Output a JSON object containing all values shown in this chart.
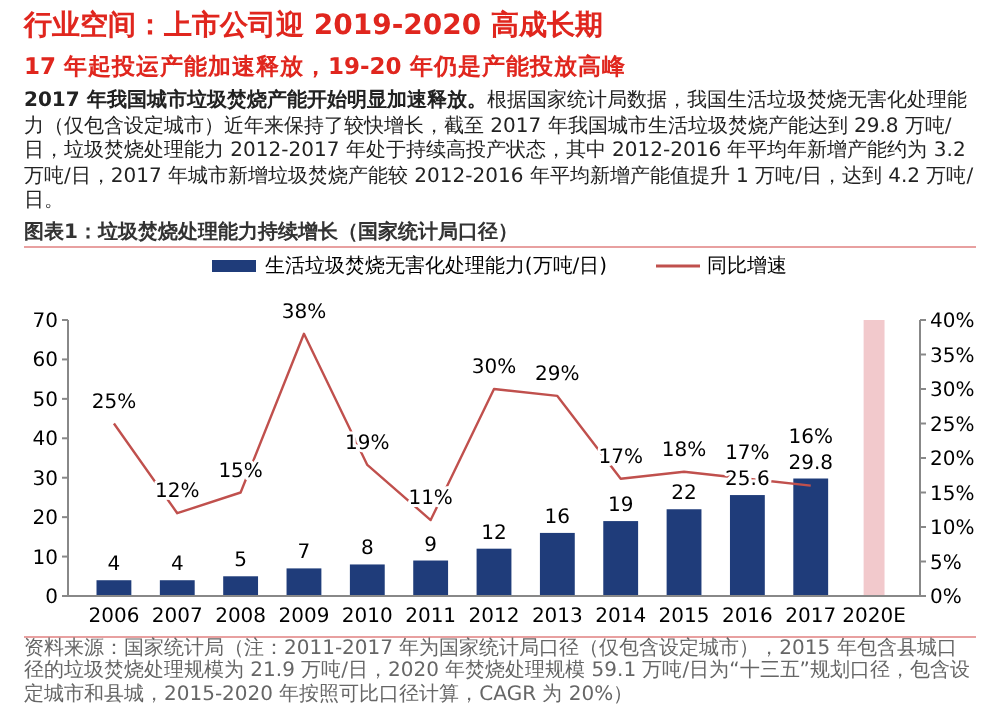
{
  "chart_data": {
    "type": "bar",
    "title": "行业空间：上市公司迎 2019-2020 高成长期",
    "subtitle": "17 年起投运产能加速释放，19-20 年仍是产能投放高峰",
    "annotations": [
      "2017 年我国城市垃圾焚烧产能开始明显加速释放。",
      "根据国家统计局数据，我国生活垃圾焚烧无害化处理能力（仅包含设定城市）近年来保持了较快增长，截至 2017 年我国城市生活垃圾焚烧产能达到 29.8 万吨/日，垃圾焚烧处理能力 2012-2017 年处于持续高投产状态，其中 2012-2016 年平均年新增产能约为 3.2 万吨/日，2017 年城市新增垃圾焚烧产能较 2012-2016 年平均新增产能值提升 1 万吨/日，达到 4.2 万吨/日。",
      "图表1：垃圾焚烧处理能力持续增长（国家统计局口径）",
      "资料来源：国家统计局（注：2011-2017 年为国家统计局口径（仅包含设定城市），2015 年包含县城口径的垃圾焚烧处理规模为 21.9 万吨/日，2020 年焚烧处理规模 59.1 万吨/日为“十三五”规划口径，包含设定城市和县城，2015-2020 年按照可比口径计算，CAGR 为 20%）"
    ],
    "categories": [
      "2006",
      "2007",
      "2008",
      "2009",
      "2010",
      "2011",
      "2012",
      "2013",
      "2014",
      "2015",
      "2016",
      "2017",
      "2020E"
    ],
    "series": [
      {
        "name": "生活垃圾焚烧无害化处理能力(万吨/日)",
        "type": "bar",
        "color": "#1f3c7a",
        "values": [
          4,
          4,
          5,
          7,
          8,
          9,
          12,
          16,
          19,
          22,
          25.6,
          29.8,
          null
        ],
        "value_labels": [
          "4",
          "4",
          "5",
          "7",
          "8",
          "9",
          "12",
          "16",
          "19",
          "22",
          "25.6",
          "29.8",
          null
        ]
      },
      {
        "name": "同比增速",
        "type": "line",
        "axis": "y2",
        "color": "#c0504d",
        "values": [
          25,
          12,
          15,
          38,
          19,
          11,
          30,
          29,
          17,
          18,
          17,
          16,
          null
        ],
        "value_labels": [
          "25%",
          "12%",
          "15%",
          "38%",
          "19%",
          "11%",
          "30%",
          "29%",
          "17%",
          "18%",
          "17%",
          "16%",
          null
        ]
      }
    ],
    "bands": [
      {
        "axis": "x",
        "from": "2020E",
        "to": "2020E",
        "color": "#f2c9cc"
      }
    ],
    "ylim": [
      0,
      70
    ],
    "yticks": [
      0,
      10,
      20,
      30,
      40,
      50,
      60,
      70
    ],
    "y2lim": [
      0,
      40
    ],
    "y2ticks": [
      {
        "value": 0,
        "label": "0%"
      },
      {
        "value": 5,
        "label": "5%"
      },
      {
        "value": 10,
        "label": "10%"
      },
      {
        "value": 15,
        "label": "15%"
      },
      {
        "value": 20,
        "label": "20%"
      },
      {
        "value": 25,
        "label": "25%"
      },
      {
        "value": 30,
        "label": "30%"
      },
      {
        "value": 35,
        "label": "35%"
      },
      {
        "value": 40,
        "label": "40%"
      }
    ],
    "grid": false,
    "legend": "top"
  }
}
